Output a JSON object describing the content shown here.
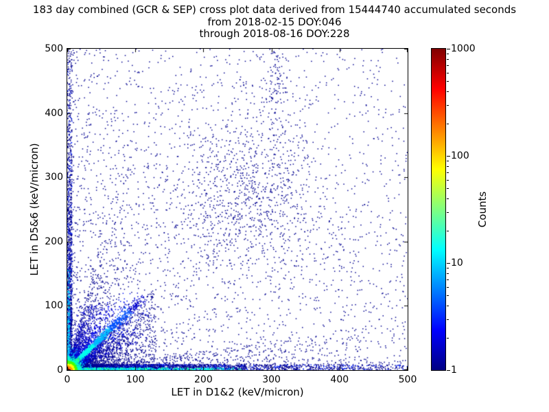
{
  "chart_data": {
    "type": "heatmap",
    "title": "183 day combined (GCR & SEP) cross plot data derived from 15444740 accumulated seconds",
    "subtitle_lines": [
      "from 2018-02-15 DOY:046",
      "through 2018-08-16 DOY:228"
    ],
    "xlabel": "LET in D1&2 (keV/micron)",
    "ylabel": "LET in D5&6 (keV/micron)",
    "xlim": [
      0,
      500
    ],
    "ylim": [
      0,
      500
    ],
    "xticks": [
      0,
      100,
      200,
      300,
      400,
      500
    ],
    "yticks": [
      0,
      100,
      200,
      300,
      400,
      500
    ],
    "grid": false,
    "colorbar": {
      "label": "Counts",
      "scale": "log",
      "ticks": [
        1000,
        100,
        10,
        1
      ],
      "min": 1,
      "max": 1000,
      "colormap": "jet",
      "gradient": [
        [
          0,
          "#000083"
        ],
        [
          0.125,
          "#0000ff"
        ],
        [
          0.375,
          "#00ffff"
        ],
        [
          0.625,
          "#ffff00"
        ],
        [
          0.875,
          "#ff0000"
        ],
        [
          1,
          "#800000"
        ]
      ]
    },
    "features": [
      {
        "kind": "sparse",
        "n": 2400,
        "bias": 1.7,
        "color": "#000090"
      },
      {
        "kind": "sparse",
        "n": 500,
        "bias": 1.0,
        "color": "#000090"
      },
      {
        "kind": "blob",
        "n": 850,
        "cx": 265,
        "cy": 270,
        "sx": 60,
        "sy": 65,
        "color": "#000090"
      },
      {
        "kind": "blob",
        "n": 130,
        "cx": 303,
        "cy": 445,
        "sx": 10,
        "sy": 50,
        "color": "#000090"
      },
      {
        "kind": "vband",
        "n": 1300,
        "xmax": 7,
        "ymax": 500,
        "decay": 190,
        "colors": [
          [
            "#000090",
            0.8
          ],
          [
            "#0022ff",
            0.2
          ]
        ]
      },
      {
        "kind": "hband",
        "n": 2500,
        "ymax": 9,
        "xmax": 500,
        "decay": 160,
        "colors": [
          [
            "#000090",
            0.75
          ],
          [
            "#0022ff",
            0.25
          ]
        ]
      },
      {
        "kind": "wedge",
        "n": 600,
        "xmax": 450,
        "slopeMin": 0.0,
        "slopeMax": 0.15,
        "decay": 170,
        "color": "#000090"
      },
      {
        "kind": "wedge",
        "n": 1700,
        "xmax": 130,
        "slopeMin": 0.1,
        "slopeMax": 1.0,
        "decay": 60,
        "color": "#000090"
      },
      {
        "kind": "wedge",
        "n": 650,
        "xmax": 95,
        "slopeMin": 1.0,
        "slopeMax": 4.0,
        "decay": 28,
        "color": "#000090"
      },
      {
        "kind": "ray",
        "n": 130,
        "slope": 0.45,
        "len": 130,
        "spread": 3,
        "decay": 55,
        "color": "#0000cc"
      },
      {
        "kind": "ray",
        "n": 150,
        "slope": 0.65,
        "len": 120,
        "spread": 3,
        "decay": 55,
        "color": "#0000cc"
      },
      {
        "kind": "ray",
        "n": 260,
        "slope": 1.45,
        "len": 125,
        "spread": 3,
        "decay": 60,
        "colors": [
          [
            "#0000ff",
            0.5
          ],
          [
            "#000090",
            0.5
          ]
        ]
      },
      {
        "kind": "ray",
        "n": 210,
        "slope": 1.9,
        "len": 115,
        "spread": 3,
        "decay": 55,
        "color": "#0000cc"
      },
      {
        "kind": "ray",
        "n": 170,
        "slope": 2.6,
        "len": 110,
        "spread": 3,
        "decay": 50,
        "color": "#0000cc"
      },
      {
        "kind": "ray",
        "n": 140,
        "slope": 3.6,
        "len": 105,
        "spread": 2.5,
        "decay": 45,
        "color": "#0000cc"
      },
      {
        "kind": "ray",
        "n": 650,
        "slope": 1.0,
        "len": 150,
        "spread": 8,
        "decay": 55,
        "color": "#0011ee"
      },
      {
        "kind": "vband",
        "n": 240,
        "xmax": 4,
        "ymax": 160,
        "decay": 60,
        "color": "#00d5ff"
      },
      {
        "kind": "hband",
        "n": 650,
        "ymax": 3.5,
        "xmax": 255,
        "decay": 110,
        "colors": [
          [
            "#00ffff",
            0.4
          ],
          [
            "#00c8ff",
            0.25
          ],
          [
            "#20ff80",
            0.35
          ]
        ]
      },
      {
        "kind": "ray",
        "n": 1600,
        "slope": 1.0,
        "len": 160,
        "spread": 2.6,
        "decay": 58,
        "grad": [
          [
            13,
            "#b8ff00"
          ],
          [
            26,
            "#30ff70"
          ],
          [
            55,
            "#00ffee"
          ],
          [
            90,
            "#00bbff"
          ],
          [
            130,
            "#0055ff"
          ],
          [
            9999,
            "#0000cc"
          ]
        ]
      },
      {
        "kind": "hot-core",
        "n": 2600,
        "scale": 6,
        "rings": [
          [
            2.5,
            "#8b0000"
          ],
          [
            4.5,
            "#ff2800"
          ],
          [
            7,
            "#ff9800"
          ],
          [
            10,
            "#ffff00"
          ],
          [
            15,
            "#44ff00"
          ],
          [
            23,
            "#00ffc8"
          ],
          [
            36,
            "#00aaff"
          ],
          [
            9999,
            "#0033ff"
          ]
        ]
      }
    ]
  }
}
